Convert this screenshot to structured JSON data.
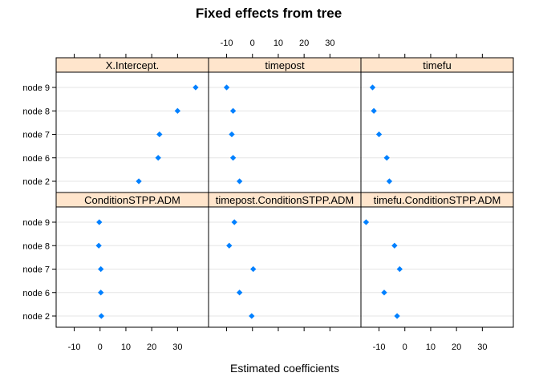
{
  "chart_data": {
    "type": "dotplot",
    "title": "Fixed effects from tree",
    "xlabel": "Estimated coefficients",
    "ylabel": "",
    "categories": [
      "node 2",
      "node 6",
      "node 7",
      "node 8",
      "node 9"
    ],
    "x_ticks": [
      -10,
      0,
      10,
      20,
      30
    ],
    "xlim": [
      -17,
      42
    ],
    "grid": "horizontal",
    "point_color": "#0080ff",
    "strip_color": "#ffe5cc",
    "layout": {
      "columns": 3,
      "rows": 2
    },
    "panels": [
      {
        "name": "X.Intercept.",
        "row": 1,
        "col": 1,
        "values": [
          15.0,
          22.5,
          23.0,
          30.0,
          37.0
        ]
      },
      {
        "name": "timepost",
        "row": 1,
        "col": 2,
        "values": [
          -5.0,
          -7.5,
          -8.0,
          -7.5,
          -10.0
        ]
      },
      {
        "name": "timefu",
        "row": 1,
        "col": 3,
        "values": [
          -6.0,
          -7.0,
          -10.0,
          -12.0,
          -12.5
        ]
      },
      {
        "name": "ConditionSTPP.ADM",
        "row": 2,
        "col": 1,
        "values": [
          0.5,
          0.3,
          0.3,
          -0.5,
          -0.3
        ]
      },
      {
        "name": "timepost.ConditionSTPP.ADM",
        "row": 2,
        "col": 2,
        "values": [
          -0.3,
          -5.0,
          0.3,
          -9.0,
          -7.0
        ]
      },
      {
        "name": "timefu.ConditionSTPP.ADM",
        "row": 2,
        "col": 3,
        "values": [
          -3.0,
          -8.0,
          -2.0,
          -4.0,
          -15.0
        ]
      }
    ]
  }
}
